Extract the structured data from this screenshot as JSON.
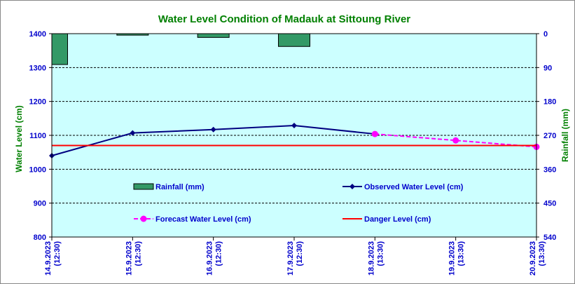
{
  "chart_data": {
    "type": "bar+line",
    "title": "Water Level Condition of Madauk at Sittoung River",
    "ylabel": "Water Level (cm)",
    "y2label": "Rainfall (mm)",
    "ylim": [
      800,
      1400
    ],
    "y2lim": [
      540,
      0
    ],
    "yticks": [
      "1400",
      "1300",
      "1200",
      "1100",
      "1000",
      "900",
      "800"
    ],
    "y2ticks": [
      "0",
      "90",
      "180",
      "270",
      "360",
      "450",
      "540"
    ],
    "categories": [
      "14.9.2023 (12:30)",
      "15.9.2023 (12:30)",
      "16.9.2023 (12:30)",
      "17.9.2023 (12:30)",
      "18.9.2023 (13:30)",
      "19.9.2023 (13:30)",
      "20.9.2023 (13:30)"
    ],
    "series": [
      {
        "name": "Rainfall (mm)",
        "kind": "bar",
        "axis": "right",
        "color": "#339966",
        "values": [
          82,
          4,
          10,
          34,
          null,
          null,
          null
        ]
      },
      {
        "name": "Observed Water Level (cm)",
        "kind": "line",
        "color": "#000080",
        "values": [
          1040,
          1107,
          1117,
          1129,
          1104,
          null,
          null
        ]
      },
      {
        "name": "Forecast Water Level (cm)",
        "kind": "dashed-line",
        "color": "#FF00FF",
        "values": [
          null,
          null,
          null,
          null,
          1104,
          1085,
          1066
        ]
      },
      {
        "name": "Danger Level (cm)",
        "kind": "hline",
        "color": "#FF0000",
        "value": 1070
      }
    ],
    "grid": true,
    "plot_background": "#CCFFFF"
  }
}
